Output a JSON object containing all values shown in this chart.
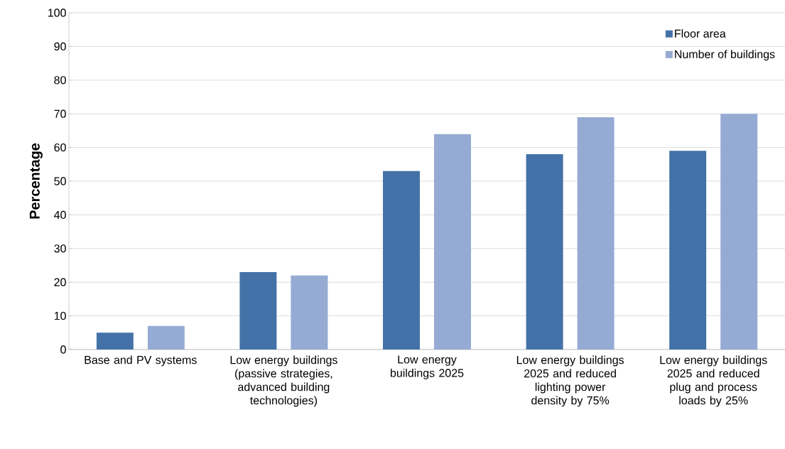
{
  "chart_data": {
    "type": "bar",
    "ylabel": "Percentage",
    "categories": [
      "Base and PV systems",
      "Low energy buildings (passive strategies, advanced building technologies)",
      "Low energy buildings 2025",
      "Low energy buildings 2025 and reduced lighting power density by 75%",
      "Low energy buildings 2025 and reduced plug and process loads by 25%"
    ],
    "series": [
      {
        "name": "Floor area",
        "color": "#4472a8",
        "values": [
          5,
          23,
          53,
          58,
          59
        ]
      },
      {
        "name": "Number of buildings",
        "color": "#95abd3",
        "values": [
          7,
          22,
          64,
          69,
          70
        ]
      }
    ],
    "ylim": [
      0,
      100
    ],
    "yticks": [
      0,
      10,
      20,
      30,
      40,
      50,
      60,
      70,
      80,
      90,
      100
    ],
    "grid": "y",
    "legend": "top right"
  }
}
